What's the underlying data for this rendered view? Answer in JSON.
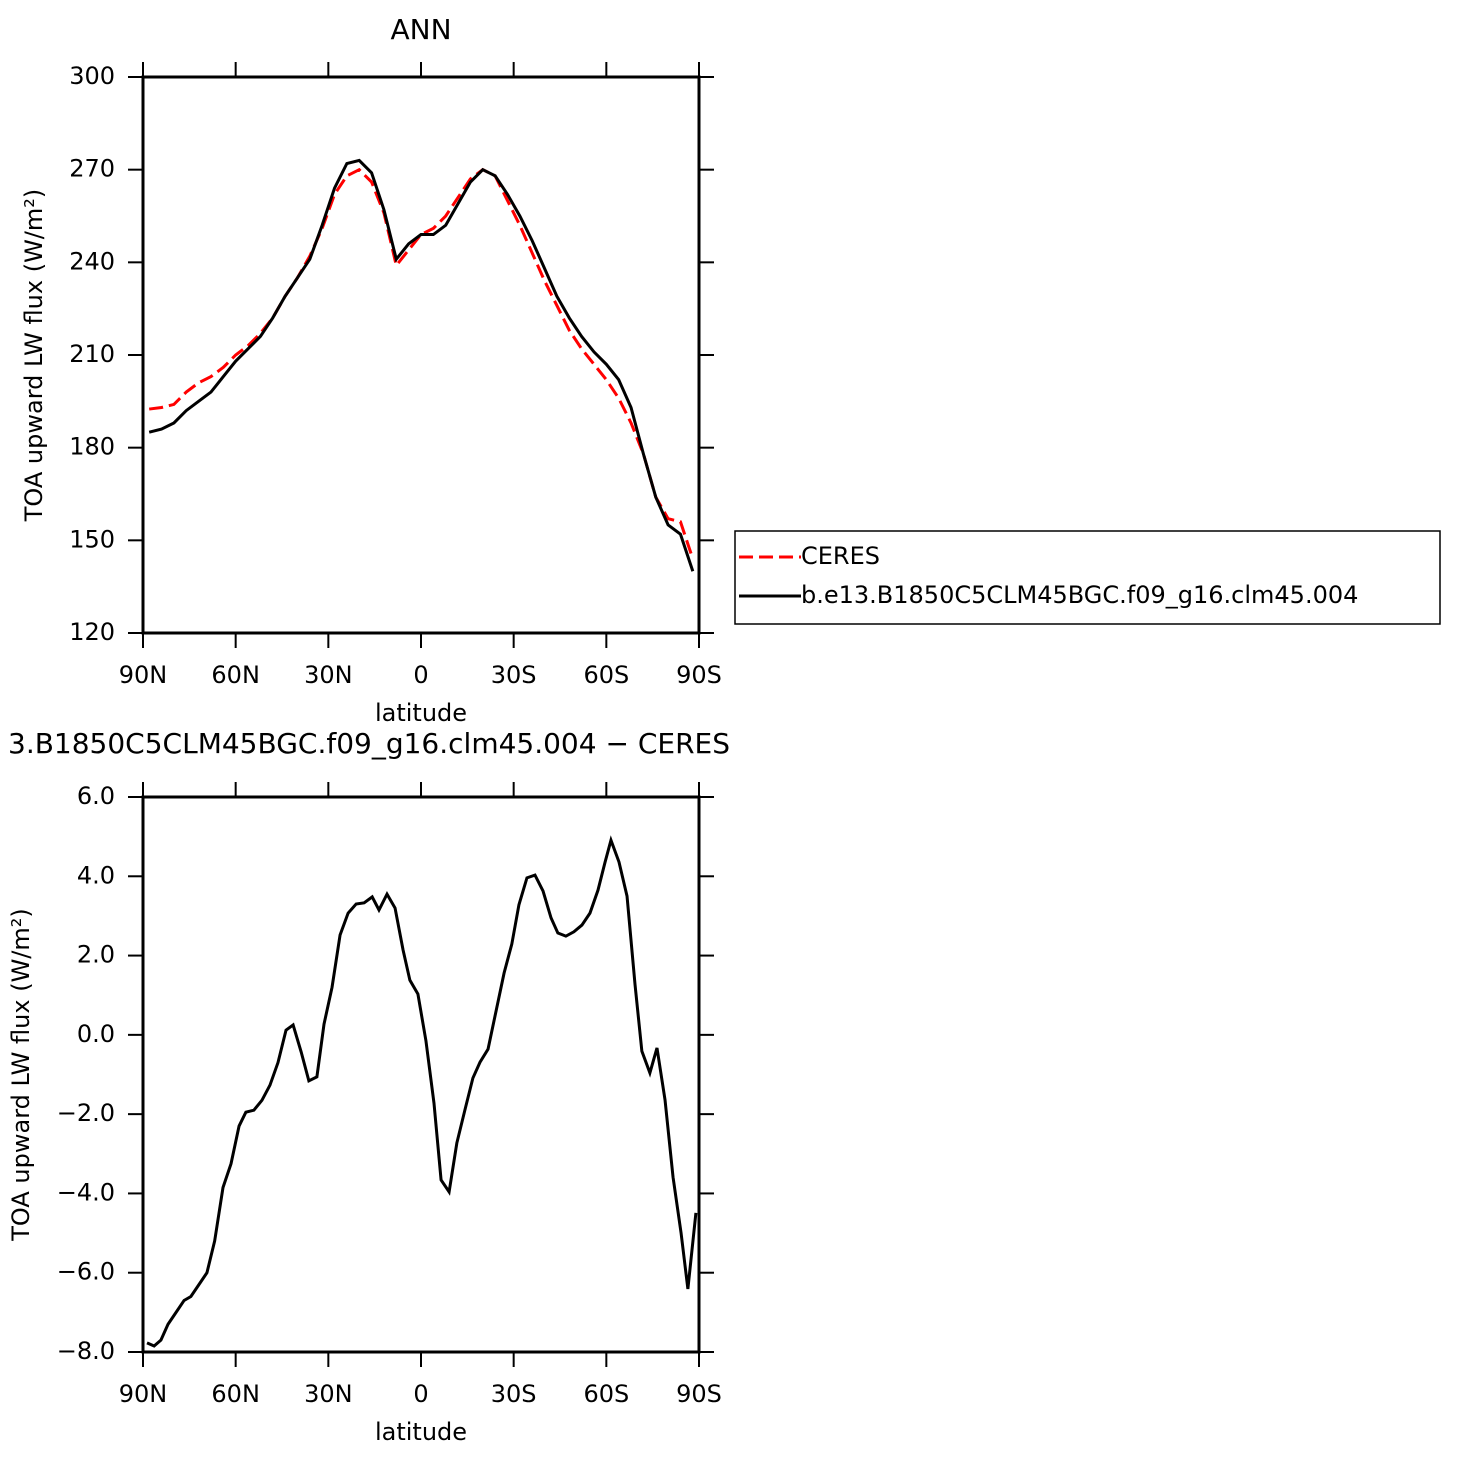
{
  "chart_data": [
    {
      "type": "line",
      "title": "ANN",
      "xlabel": "latitude",
      "ylabel": "TOA upward LW flux (W/m²)",
      "x": [
        88,
        84,
        80,
        76,
        72,
        68,
        64,
        60,
        56,
        52,
        48,
        44,
        40,
        36,
        32,
        28,
        24,
        20,
        16,
        12,
        8,
        4,
        0,
        -4,
        -8,
        -12,
        -16,
        -20,
        -24,
        -28,
        -32,
        -36,
        -40,
        -44,
        -48,
        -52,
        -56,
        -60,
        -64,
        -68,
        -72,
        -76,
        -80,
        -84,
        -88
      ],
      "series": [
        {
          "name": "CERES",
          "color": "#ff0000",
          "line_style": "dashed",
          "values": [
            192.5,
            193,
            194,
            198,
            201,
            203,
            206,
            210,
            213,
            217,
            222,
            229,
            235,
            242,
            251,
            262,
            268,
            270,
            266,
            256,
            239,
            244,
            249,
            251,
            255,
            261,
            267,
            270,
            268,
            260,
            252,
            243,
            234,
            226,
            218,
            212,
            207,
            202,
            196,
            188,
            178,
            164,
            157,
            156,
            144
          ]
        },
        {
          "name": "b.e13.B1850C5CLM45BGC.f09_g16.clm45.004",
          "color": "#000000",
          "line_style": "solid",
          "values": [
            185,
            186,
            188,
            192,
            195,
            198,
            203,
            208,
            212,
            216,
            222,
            229,
            235,
            241,
            252,
            264,
            272,
            273,
            269,
            257,
            241,
            246,
            249,
            249,
            252,
            259,
            266,
            270,
            268,
            262,
            255,
            247,
            238,
            229,
            222,
            216,
            211,
            207,
            202,
            193,
            178,
            164,
            155,
            152,
            140
          ]
        }
      ],
      "xlim": [
        90,
        -90
      ],
      "xticks": [
        {
          "value": 90,
          "label": "90N"
        },
        {
          "value": 60,
          "label": "60N"
        },
        {
          "value": 30,
          "label": "30N"
        },
        0,
        {
          "value": -30,
          "label": "30S"
        },
        {
          "value": -60,
          "label": "60S"
        },
        {
          "value": -90,
          "label": "90S"
        }
      ],
      "ylim": [
        120,
        300
      ],
      "yticks": [
        120,
        150,
        180,
        210,
        240,
        270,
        300
      ],
      "legend": "right"
    },
    {
      "type": "line",
      "title": "3.B1850C5CLM45BGC.f09_g16.clm45.004 − CERES",
      "xlabel": "latitude",
      "ylabel": "TOA upward LW flux (W/m²)",
      "x": [
        88.7,
        86.4,
        84.2,
        81.9,
        79.3,
        76.7,
        74.5,
        71.9,
        69.3,
        66.8,
        64.1,
        61.5,
        58.9,
        56.7,
        54.1,
        51.5,
        48.9,
        46.3,
        43.7,
        41.4,
        38.8,
        36.3,
        33.7,
        31.4,
        28.8,
        26.2,
        23.6,
        21.0,
        18.4,
        15.8,
        13.6,
        11.0,
        8.4,
        5.8,
        3.6,
        1.0,
        -1.6,
        -4.2,
        -6.5,
        -9.1,
        -11.6,
        -14.2,
        -16.8,
        -19.1,
        -21.7,
        -24.3,
        -26.9,
        -29.4,
        -31.7,
        -34.3,
        -36.9,
        -39.5,
        -42.1,
        -44.3,
        -46.9,
        -49.5,
        -52.1,
        -54.7,
        -57.3,
        -59.6,
        -61.5,
        -64.1,
        -66.7,
        -69.3,
        -71.5,
        -74.1,
        -76.4,
        -79.0,
        -81.6,
        -84.2,
        -86.4,
        -89.0
      ],
      "color": "#000000",
      "values": [
        -7.77,
        -7.85,
        -7.7,
        -7.3,
        -7.0,
        -6.7,
        -6.6,
        -6.3,
        -6.0,
        -5.2,
        -3.85,
        -3.25,
        -2.3,
        -1.95,
        -1.9,
        -1.65,
        -1.27,
        -0.7,
        0.12,
        0.25,
        -0.43,
        -1.16,
        -1.06,
        0.27,
        1.2,
        2.52,
        3.07,
        3.3,
        3.33,
        3.48,
        3.15,
        3.55,
        3.2,
        2.14,
        1.38,
        1.03,
        -0.15,
        -1.72,
        -3.66,
        -3.96,
        -2.73,
        -1.9,
        -1.09,
        -0.69,
        -0.36,
        0.6,
        1.56,
        2.29,
        3.28,
        3.96,
        4.03,
        3.63,
        2.95,
        2.57,
        2.49,
        2.6,
        2.77,
        3.07,
        3.65,
        4.36,
        4.91,
        4.36,
        3.5,
        1.26,
        -0.41,
        -0.96,
        -0.33,
        -1.64,
        -3.59,
        -5.0,
        -6.41,
        -4.49
      ],
      "xlim": [
        90,
        -90
      ],
      "xticks": [
        {
          "value": 90,
          "label": "90N"
        },
        {
          "value": 60,
          "label": "60N"
        },
        {
          "value": 30,
          "label": "30N"
        },
        0,
        {
          "value": -30,
          "label": "30S"
        },
        {
          "value": -60,
          "label": "60S"
        },
        {
          "value": -90,
          "label": "90S"
        }
      ],
      "ylim": [
        -8,
        6
      ],
      "yticks": [
        {
          "value": -8,
          "label": "−8.0"
        },
        {
          "value": -6,
          "label": "−6.0"
        },
        {
          "value": -4,
          "label": "−4.0"
        },
        {
          "value": -2,
          "label": "−2.0"
        },
        {
          "value": 0,
          "label": "0.0"
        },
        {
          "value": 2,
          "label": "2.0"
        },
        {
          "value": 4,
          "label": "4.0"
        },
        {
          "value": 6,
          "label": "6.0"
        }
      ]
    }
  ]
}
